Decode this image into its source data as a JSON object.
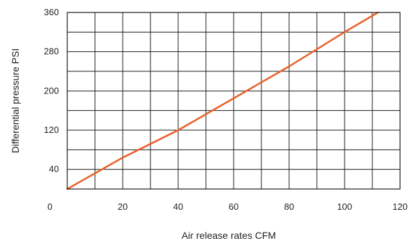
{
  "chart_data": {
    "type": "line",
    "title": "",
    "xlabel": "Air release rates CFM",
    "ylabel": "Differential pressure PSI",
    "xlim": [
      0,
      120
    ],
    "ylim": [
      0,
      360
    ],
    "x_ticks": [
      0,
      20,
      40,
      60,
      80,
      100,
      120
    ],
    "y_ticks": [
      40,
      120,
      200,
      280,
      360
    ],
    "x_tick_labels": [
      "0",
      "20",
      "40",
      "60",
      "80",
      "100",
      "120"
    ],
    "y_tick_labels": [
      "40",
      "120",
      "200",
      "280",
      "360"
    ],
    "x_grid_step": 10,
    "y_grid_step": 40,
    "grid": true,
    "legend": "none",
    "series": [
      {
        "color": "#e8632a",
        "x": [
          0,
          20,
          40,
          60,
          80,
          100,
          112
        ],
        "y": [
          0,
          64,
          120,
          185,
          250,
          320,
          360
        ]
      }
    ]
  }
}
